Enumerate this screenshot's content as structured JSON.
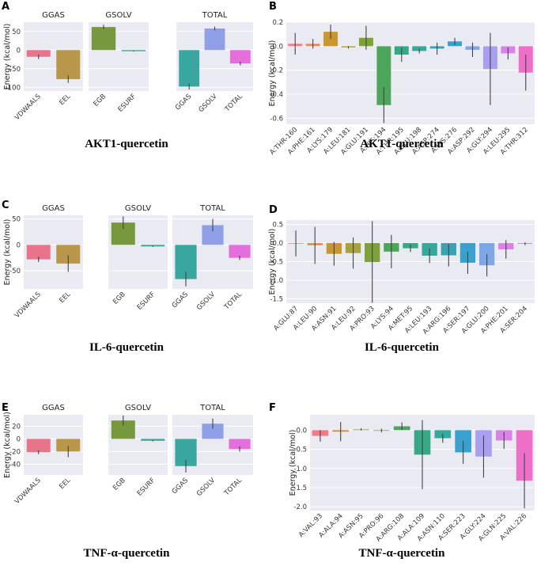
{
  "chart_data": [
    {
      "type": "bar",
      "panel_label": "A",
      "caption": "AKT1-quercetin",
      "ylabel": "Energy (kcal/mol)",
      "ylim": [
        75,
        -110
      ],
      "yticks": [
        -100,
        -50,
        0,
        50
      ],
      "subplots": [
        {
          "title": "GGAS",
          "categories": [
            "VDWAALS",
            "EEL"
          ],
          "values": [
            -18,
            -78
          ],
          "errors": [
            6,
            10
          ],
          "colors": [
            "#e8748b",
            "#b8964a"
          ]
        },
        {
          "title": "GSOLV",
          "categories": [
            "EGB",
            "ESURF"
          ],
          "values": [
            62,
            -3
          ],
          "errors": [
            6,
            1
          ],
          "colors": [
            "#77983c",
            "#3aa88a"
          ]
        },
        {
          "title": "TOTAL",
          "categories": [
            "GGAS",
            "GSOLV",
            "TOTAL"
          ],
          "values": [
            -98,
            58,
            -36
          ],
          "errors": [
            8,
            5,
            5
          ],
          "colors": [
            "#3aa6a0",
            "#8fa0e6",
            "#e46fdc"
          ]
        }
      ]
    },
    {
      "type": "bar",
      "panel_label": "B",
      "caption": "AKT1-quercetin",
      "ylabel": "Energy (kcal/mol)",
      "ylim": [
        0.2,
        -0.65
      ],
      "yticks": [
        -0.6,
        -0.4,
        -0.2,
        0.0,
        0.2
      ],
      "yticklabels": [
        "-0.6",
        "-0.4",
        "-0.2",
        "0.0",
        "0.2"
      ],
      "categories": [
        "A:THR-160",
        "A:PHE:161",
        "A:LYS:179",
        "A:LEU:181",
        "A:GLU:191",
        "A:HIS:194",
        "A:THR:195",
        "A:GLU:198",
        "A:ASP:274",
        "A:LYS:276",
        "A:ASP:292",
        "A:GLY:294",
        "A:LEU:295",
        "A:THR:312"
      ],
      "values": [
        0.02,
        0.02,
        0.12,
        -0.01,
        0.07,
        -0.49,
        -0.07,
        -0.04,
        -0.02,
        0.04,
        -0.03,
        -0.19,
        -0.06,
        -0.22
      ],
      "errors": [
        0.09,
        0.04,
        0.06,
        0.01,
        0.1,
        0.15,
        0.06,
        0.02,
        0.05,
        0.03,
        0.06,
        0.3,
        0.05,
        0.15
      ],
      "colors": [
        "#f27a86",
        "#e8895d",
        "#c9962f",
        "#a6a33a",
        "#7ea13a",
        "#4ca55a",
        "#36a886",
        "#35a99c",
        "#37a5b1",
        "#3aa1cc",
        "#7ea7e6",
        "#a99ef0",
        "#d983e8",
        "#ee6fc8"
      ]
    },
    {
      "type": "bar",
      "panel_label": "C",
      "caption": "IL-6-quercetin",
      "ylabel": "Energy (kcal/mol)",
      "ylim": [
        57,
        -85
      ],
      "yticks": [
        -50,
        0,
        50
      ],
      "subplots": [
        {
          "title": "GGAS",
          "categories": [
            "VDWAALS",
            "EEL"
          ],
          "values": [
            -28,
            -36
          ],
          "errors": [
            5,
            16
          ],
          "colors": [
            "#e8748b",
            "#b8964a"
          ]
        },
        {
          "title": "GSOLV",
          "categories": [
            "EGB",
            "ESURF"
          ],
          "values": [
            43,
            -3
          ],
          "errors": [
            12,
            1
          ],
          "colors": [
            "#77983c",
            "#3aa88a"
          ]
        },
        {
          "title": "TOTAL",
          "categories": [
            "GGAS",
            "GSOLV",
            "TOTAL"
          ],
          "values": [
            -66,
            38,
            -25
          ],
          "errors": [
            14,
            12,
            4
          ],
          "colors": [
            "#3aa6a0",
            "#8fa0e6",
            "#e46fdc"
          ]
        }
      ]
    },
    {
      "type": "bar",
      "panel_label": "D",
      "caption": "IL-6-quercetin",
      "ylabel": "Energy (kcal/mol)",
      "ylim": [
        0.62,
        -1.62
      ],
      "yticks": [
        -1.5,
        -1.0,
        -0.5,
        0.0,
        0.5
      ],
      "yticklabels": [
        "-1.5",
        "-1.0",
        "-0.5",
        "0.0",
        "0.5"
      ],
      "categories": [
        "A:GLU:87",
        "A:LEU:90",
        "A:ASN:91",
        "A:LEU:92",
        "A:PRO:93",
        "A:LYS:94",
        "A:MET:95",
        "A:LEU:193",
        "A:ARG:196",
        "A:SER:197",
        "A:GLU:200",
        "A:PHE:201",
        "A:SER:204"
      ],
      "values": [
        -0.01,
        -0.06,
        -0.29,
        -0.27,
        -0.51,
        -0.23,
        -0.14,
        -0.34,
        -0.33,
        -0.53,
        -0.6,
        -0.17,
        -0.02
      ],
      "errors": [
        0.35,
        0.5,
        0.32,
        0.42,
        1.1,
        0.45,
        0.1,
        0.2,
        0.3,
        0.3,
        0.3,
        0.25,
        0.04
      ],
      "colors": [
        "#f27a86",
        "#e8895d",
        "#c9962f",
        "#a6a33a",
        "#7ea13a",
        "#4ca55a",
        "#36a886",
        "#35a99c",
        "#37a5b1",
        "#3aa1cc",
        "#7ea7e6",
        "#d983e8",
        "#ee6fc8"
      ]
    },
    {
      "type": "bar",
      "panel_label": "E",
      "caption": "TNF-α-quercetin",
      "ylabel": "Energy (kcal/mol)",
      "ylim": [
        38,
        -57
      ],
      "yticks": [
        -40,
        -20,
        0,
        20
      ],
      "subplots": [
        {
          "title": "GGAS",
          "categories": [
            "VDWAALS",
            "EEL"
          ],
          "values": [
            -21,
            -20
          ],
          "errors": [
            3,
            9
          ],
          "colors": [
            "#e8748b",
            "#b8964a"
          ]
        },
        {
          "title": "GSOLV",
          "categories": [
            "EGB",
            "ESURF"
          ],
          "values": [
            29,
            -3
          ],
          "errors": [
            8,
            1
          ],
          "colors": [
            "#77983c",
            "#3aa88a"
          ]
        },
        {
          "title": "TOTAL",
          "categories": [
            "GGAS",
            "GSOLV",
            "TOTAL"
          ],
          "values": [
            -43,
            24,
            -16
          ],
          "errors": [
            10,
            8,
            4
          ],
          "colors": [
            "#3aa6a0",
            "#8fa0e6",
            "#e46fdc"
          ]
        }
      ]
    },
    {
      "type": "bar",
      "panel_label": "F",
      "caption": "TNF-α-quercetin",
      "ylabel": "Energy (kcal/mol)",
      "ylim": [
        0.4,
        -2.1
      ],
      "yticks": [
        -2.0,
        -1.5,
        -1.0,
        -0.5,
        0.0
      ],
      "yticklabels": [
        "-2.0",
        "-1.5",
        "-1.0",
        "-0.5",
        "0.0"
      ],
      "categories": [
        "A:VAL:93",
        "A:ALA:94",
        "A:ASN:95",
        "A:PRO:96",
        "A:ARG:108",
        "A:ALA:109",
        "A:ASN:110",
        "A:SER:223",
        "A:GLY:224",
        "A:GLN:225",
        "A:VAL:226"
      ],
      "values": [
        -0.15,
        -0.04,
        0.02,
        -0.01,
        0.1,
        -0.64,
        -0.21,
        -0.58,
        -0.69,
        -0.27,
        -1.32
      ],
      "errors": [
        0.15,
        0.25,
        0.03,
        0.05,
        0.1,
        0.9,
        0.12,
        0.3,
        0.55,
        0.22,
        0.72
      ],
      "colors": [
        "#f27a86",
        "#d58c3a",
        "#a6a33a",
        "#7ea13a",
        "#4ca55a",
        "#36a886",
        "#35a99c",
        "#3aa1cc",
        "#a99ef0",
        "#d983e8",
        "#ee6fc8"
      ]
    }
  ]
}
